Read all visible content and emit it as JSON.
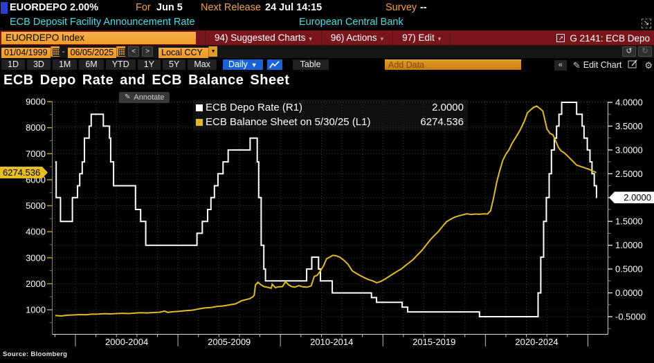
{
  "header": {
    "ticker": "EUORDEPO",
    "last_value": "2.00%",
    "for_label": "For",
    "for_value": "Jun 5",
    "next_release_label": "Next Release",
    "next_release_value": "24 Jul 14:15",
    "survey_label": "Survey",
    "survey_value": "--",
    "description": "ECB Deposit Facility Announcement Rate",
    "issuer": "European Central Bank"
  },
  "menubar": {
    "security_field": "EUORDEPO Index",
    "items": [
      "94) Suggested Charts",
      "96) Actions",
      "97) Edit"
    ],
    "chart_tag": "G 2141: ECB Depo"
  },
  "datebar": {
    "start_date": "01/04/1999",
    "separator": "-",
    "end_date": "06/05/2025",
    "prev": "<",
    "next": ">",
    "currency": "Local CCY"
  },
  "toolbar": {
    "periods": [
      "1D",
      "3D",
      "1M",
      "6M",
      "YTD",
      "1Y",
      "5Y",
      "Max"
    ],
    "frequency": "Daily",
    "table_label": "Table",
    "add_data_placeholder": "Add Data",
    "collapse_label": "«",
    "edit_chart_label": "Edit Chart"
  },
  "chart": {
    "title": "ECB Depo Rate and ECB Balance Sheet",
    "annotate_label": "Annotate",
    "left_badge": "6274.536",
    "right_badge": "2.0000",
    "source": "Source: Bloomberg",
    "legend": [
      {
        "label": "ECB Depo Rate (R1)",
        "value": "2.0000",
        "color": "#ffffff"
      },
      {
        "label": "ECB Balance Sheet on 5/30/25 (L1)",
        "value": "6274.536",
        "color": "#dfbc23"
      }
    ]
  },
  "chart_data": {
    "type": "line",
    "title": "ECB Depo Rate and ECB Balance Sheet",
    "x_axis": {
      "start": 1999.01,
      "end": 2025.43,
      "dividers": [
        2000,
        2005,
        2010,
        2015,
        2020,
        2025
      ],
      "labels": [
        "2000-2004",
        "2005-2009",
        "2010-2014",
        "2015-2019",
        "2020-2024"
      ]
    },
    "left_axis": {
      "ticks": [
        {
          "v": 9000,
          "t": "9000"
        },
        {
          "v": 8000,
          "t": "8000"
        },
        {
          "v": 7000,
          "t": "7000"
        },
        {
          "v": 6000,
          "t": "6000"
        },
        {
          "v": 5000,
          "t": "5000"
        },
        {
          "v": 4000,
          "t": "4000"
        },
        {
          "v": 3000,
          "t": "3000"
        },
        {
          "v": 2000,
          "t": "2000"
        },
        {
          "v": 1000,
          "t": "1000"
        }
      ],
      "minor_step": 1000,
      "minor_start": 500,
      "minor_end": 8500
    },
    "right_axis": {
      "ticks": [
        {
          "v": 4.0,
          "t": "4.0000"
        },
        {
          "v": 3.5,
          "t": "3.5000"
        },
        {
          "v": 3.0,
          "t": "3.0000"
        },
        {
          "v": 2.5,
          "t": "2.5000"
        },
        {
          "v": 2.0,
          "t": "2.0000"
        },
        {
          "v": 1.5,
          "t": "1.5000"
        },
        {
          "v": 1.0,
          "t": "1.0000"
        },
        {
          "v": 0.5,
          "t": "0.5000"
        },
        {
          "v": 0.0,
          "t": "0.0000"
        },
        {
          "v": -0.5,
          "t": "-0.5000"
        }
      ],
      "minor_step": 0.5,
      "minor_start": 3.75,
      "minor_end": -0.75
    },
    "series": [
      {
        "name": "ECB Depo Rate (R1)",
        "axis": "right",
        "style": "step",
        "color": "#ffffff",
        "last": 2.0,
        "points": [
          [
            1999.01,
            2.75
          ],
          [
            1999.06,
            2.0
          ],
          [
            1999.27,
            1.5
          ],
          [
            1999.85,
            2.0
          ],
          [
            2000.1,
            2.25
          ],
          [
            2000.21,
            2.5
          ],
          [
            2000.33,
            2.75
          ],
          [
            2000.44,
            3.25
          ],
          [
            2000.67,
            3.5
          ],
          [
            2000.77,
            3.75
          ],
          [
            2001.36,
            3.5
          ],
          [
            2001.66,
            3.25
          ],
          [
            2001.72,
            2.75
          ],
          [
            2001.86,
            2.25
          ],
          [
            2002.93,
            1.75
          ],
          [
            2003.18,
            1.5
          ],
          [
            2003.43,
            1.0
          ],
          [
            2005.93,
            1.25
          ],
          [
            2006.19,
            1.5
          ],
          [
            2006.45,
            1.75
          ],
          [
            2006.61,
            2.0
          ],
          [
            2006.78,
            2.25
          ],
          [
            2006.95,
            2.5
          ],
          [
            2007.2,
            2.75
          ],
          [
            2007.45,
            3.0
          ],
          [
            2008.52,
            3.25
          ],
          [
            2008.87,
            2.75
          ],
          [
            2008.94,
            2.0
          ],
          [
            2009.06,
            1.0
          ],
          [
            2009.19,
            0.5
          ],
          [
            2009.27,
            0.25
          ],
          [
            2011.28,
            0.5
          ],
          [
            2011.53,
            0.75
          ],
          [
            2011.86,
            0.5
          ],
          [
            2011.95,
            0.25
          ],
          [
            2012.53,
            0.0
          ],
          [
            2014.44,
            -0.1
          ],
          [
            2014.69,
            -0.2
          ],
          [
            2015.94,
            -0.3
          ],
          [
            2016.21,
            -0.4
          ],
          [
            2019.71,
            -0.5
          ],
          [
            2022.57,
            0.0
          ],
          [
            2022.7,
            0.75
          ],
          [
            2022.84,
            1.5
          ],
          [
            2022.97,
            2.0
          ],
          [
            2023.11,
            2.5
          ],
          [
            2023.22,
            3.0
          ],
          [
            2023.36,
            3.25
          ],
          [
            2023.47,
            3.5
          ],
          [
            2023.59,
            3.75
          ],
          [
            2023.72,
            4.0
          ],
          [
            2024.45,
            3.75
          ],
          [
            2024.72,
            3.5
          ],
          [
            2024.81,
            3.25
          ],
          [
            2024.97,
            3.0
          ],
          [
            2025.1,
            2.75
          ],
          [
            2025.2,
            2.5
          ],
          [
            2025.31,
            2.25
          ],
          [
            2025.42,
            2.0
          ]
        ]
      },
      {
        "name": "ECB Balance Sheet on 5/30/25 (L1)",
        "axis": "left",
        "style": "line",
        "color": "#dfbc23",
        "last": 6274.536,
        "points": [
          [
            1999.02,
            780
          ],
          [
            1999.3,
            760
          ],
          [
            1999.6,
            790
          ],
          [
            1999.9,
            800
          ],
          [
            2000.2,
            815
          ],
          [
            2000.5,
            805
          ],
          [
            2000.8,
            830
          ],
          [
            2001.1,
            835
          ],
          [
            2001.4,
            850
          ],
          [
            2001.7,
            840
          ],
          [
            2002.0,
            855
          ],
          [
            2002.3,
            865
          ],
          [
            2002.6,
            855
          ],
          [
            2002.9,
            875
          ],
          [
            2003.2,
            885
          ],
          [
            2003.5,
            878
          ],
          [
            2003.8,
            895
          ],
          [
            2004.1,
            905
          ],
          [
            2004.35,
            950
          ],
          [
            2004.5,
            900
          ],
          [
            2004.8,
            925
          ],
          [
            2005.1,
            945
          ],
          [
            2005.4,
            965
          ],
          [
            2005.7,
            985
          ],
          [
            2006.0,
            1030
          ],
          [
            2006.3,
            1070
          ],
          [
            2006.6,
            1085
          ],
          [
            2006.9,
            1125
          ],
          [
            2007.2,
            1145
          ],
          [
            2007.5,
            1185
          ],
          [
            2007.8,
            1225
          ],
          [
            2007.95,
            1285
          ],
          [
            2008.1,
            1345
          ],
          [
            2008.3,
            1385
          ],
          [
            2008.5,
            1425
          ],
          [
            2008.65,
            1495
          ],
          [
            2008.72,
            1560
          ],
          [
            2008.78,
            1950
          ],
          [
            2008.9,
            2060
          ],
          [
            2009.05,
            1960
          ],
          [
            2009.2,
            1890
          ],
          [
            2009.4,
            1860
          ],
          [
            2009.55,
            1830
          ],
          [
            2009.6,
            1980
          ],
          [
            2009.75,
            1850
          ],
          [
            2009.9,
            1880
          ],
          [
            2010.1,
            1890
          ],
          [
            2010.25,
            2080
          ],
          [
            2010.4,
            1960
          ],
          [
            2010.55,
            1890
          ],
          [
            2010.7,
            1870
          ],
          [
            2010.9,
            1930
          ],
          [
            2011.1,
            1880
          ],
          [
            2011.3,
            1870
          ],
          [
            2011.5,
            1920
          ],
          [
            2011.65,
            2280
          ],
          [
            2011.8,
            2330
          ],
          [
            2011.95,
            2500
          ],
          [
            2012.1,
            2680
          ],
          [
            2012.25,
            2960
          ],
          [
            2012.4,
            3020
          ],
          [
            2012.55,
            3090
          ],
          [
            2012.7,
            3080
          ],
          [
            2012.9,
            3020
          ],
          [
            2013.1,
            2900
          ],
          [
            2013.3,
            2750
          ],
          [
            2013.5,
            2500
          ],
          [
            2013.7,
            2400
          ],
          [
            2013.9,
            2310
          ],
          [
            2014.1,
            2230
          ],
          [
            2014.3,
            2160
          ],
          [
            2014.5,
            2110
          ],
          [
            2014.7,
            2040
          ],
          [
            2014.9,
            2090
          ],
          [
            2015.1,
            2180
          ],
          [
            2015.3,
            2280
          ],
          [
            2015.5,
            2380
          ],
          [
            2015.7,
            2480
          ],
          [
            2015.9,
            2570
          ],
          [
            2016.1,
            2700
          ],
          [
            2016.3,
            2820
          ],
          [
            2016.5,
            2950
          ],
          [
            2016.7,
            3120
          ],
          [
            2016.9,
            3280
          ],
          [
            2017.1,
            3480
          ],
          [
            2017.3,
            3680
          ],
          [
            2017.5,
            3850
          ],
          [
            2017.7,
            4000
          ],
          [
            2017.9,
            4200
          ],
          [
            2018.1,
            4380
          ],
          [
            2018.3,
            4480
          ],
          [
            2018.5,
            4560
          ],
          [
            2018.7,
            4610
          ],
          [
            2018.9,
            4650
          ],
          [
            2019.1,
            4690
          ],
          [
            2019.3,
            4660
          ],
          [
            2019.5,
            4680
          ],
          [
            2019.7,
            4670
          ],
          [
            2019.9,
            4690
          ],
          [
            2020.1,
            4680
          ],
          [
            2020.25,
            4800
          ],
          [
            2020.4,
            5300
          ],
          [
            2020.55,
            5900
          ],
          [
            2020.7,
            6350
          ],
          [
            2020.85,
            6750
          ],
          [
            2021.0,
            6980
          ],
          [
            2021.15,
            7150
          ],
          [
            2021.3,
            7400
          ],
          [
            2021.5,
            7650
          ],
          [
            2021.7,
            7920
          ],
          [
            2021.9,
            8250
          ],
          [
            2022.05,
            8570
          ],
          [
            2022.2,
            8680
          ],
          [
            2022.35,
            8780
          ],
          [
            2022.5,
            8830
          ],
          [
            2022.65,
            8740
          ],
          [
            2022.8,
            8640
          ],
          [
            2022.9,
            8300
          ],
          [
            2023.0,
            7950
          ],
          [
            2023.15,
            7780
          ],
          [
            2023.3,
            7720
          ],
          [
            2023.45,
            7450
          ],
          [
            2023.55,
            7250
          ],
          [
            2023.7,
            7100
          ],
          [
            2023.85,
            7030
          ],
          [
            2024.0,
            6920
          ],
          [
            2024.15,
            6800
          ],
          [
            2024.3,
            6680
          ],
          [
            2024.45,
            6560
          ],
          [
            2024.6,
            6520
          ],
          [
            2024.75,
            6480
          ],
          [
            2024.9,
            6440
          ],
          [
            2025.05,
            6400
          ],
          [
            2025.2,
            6340
          ],
          [
            2025.41,
            6274.536
          ]
        ]
      }
    ]
  }
}
